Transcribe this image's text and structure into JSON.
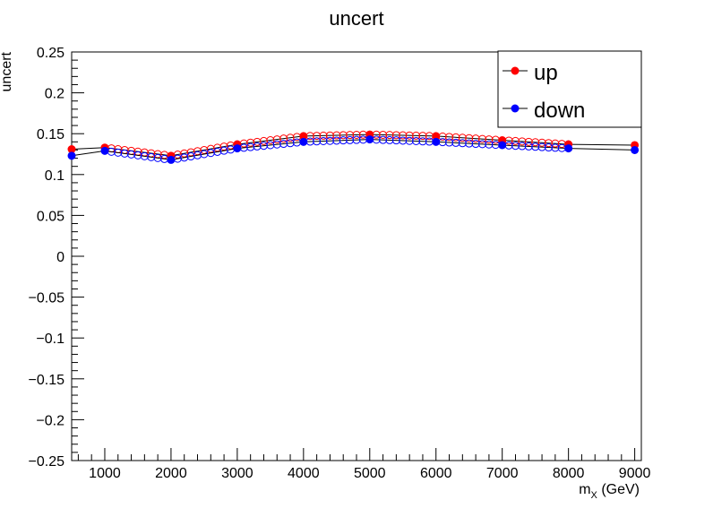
{
  "chart_data": {
    "type": "scatter",
    "title": "uncert",
    "xlabel": "m",
    "xlabel_sub": "X",
    "xlabel_unit": " (GeV)",
    "ylabel": "uncert",
    "xlim": [
      500,
      9100
    ],
    "ylim": [
      -0.25,
      0.25
    ],
    "xticks": [
      1000,
      2000,
      3000,
      4000,
      5000,
      6000,
      7000,
      8000,
      9000
    ],
    "yticks": [
      -0.25,
      -0.2,
      -0.15,
      -0.1,
      -0.05,
      0,
      0.05,
      0.1,
      0.15,
      0.2,
      0.25
    ],
    "ytick_labels": [
      "−0.25",
      "−0.2",
      "−0.15",
      "−0.1",
      "−0.05",
      "0",
      "0.05",
      "0.1",
      "0.15",
      "0.2",
      "0.25"
    ],
    "legend_position": "top-right",
    "series": [
      {
        "name": "up",
        "color": "#ff0000",
        "line_color": "#000000",
        "anchors": {
          "x": [
            500,
            1000,
            2000,
            3000,
            4000,
            5000,
            6000,
            7000,
            8000,
            9000
          ],
          "y": [
            0.131,
            0.133,
            0.123,
            0.137,
            0.147,
            0.149,
            0.147,
            0.142,
            0.137,
            0.136
          ]
        },
        "interpolated": {
          "x": [
            1100,
            1200,
            1300,
            1400,
            1500,
            1600,
            1700,
            1800,
            1900,
            2100,
            2200,
            2300,
            2400,
            2500,
            2600,
            2700,
            2800,
            2900,
            3100,
            3200,
            3300,
            3400,
            3500,
            3600,
            3700,
            3800,
            3900,
            4100,
            4200,
            4300,
            4400,
            4500,
            4600,
            4700,
            4800,
            4900,
            5100,
            5200,
            5300,
            5400,
            5500,
            5600,
            5700,
            5800,
            5900,
            6100,
            6200,
            6300,
            6400,
            6500,
            6600,
            6700,
            6800,
            6900,
            7100,
            7200,
            7300,
            7400,
            7500,
            7600,
            7700,
            7800,
            7900
          ],
          "y": [
            0.132,
            0.131,
            0.13,
            0.129,
            0.128,
            0.127,
            0.126,
            0.125,
            0.124,
            0.1244,
            0.1258,
            0.1272,
            0.1286,
            0.13,
            0.1314,
            0.1328,
            0.1342,
            0.1356,
            0.138,
            0.139,
            0.14,
            0.141,
            0.142,
            0.143,
            0.144,
            0.145,
            0.146,
            0.1472,
            0.1474,
            0.1476,
            0.1478,
            0.148,
            0.1482,
            0.1484,
            0.1486,
            0.1488,
            0.1488,
            0.1486,
            0.1484,
            0.1482,
            0.148,
            0.1478,
            0.1476,
            0.1474,
            0.1472,
            0.1465,
            0.146,
            0.1455,
            0.145,
            0.1445,
            0.144,
            0.1435,
            0.143,
            0.1425,
            0.1415,
            0.141,
            0.1405,
            0.14,
            0.1395,
            0.139,
            0.1385,
            0.138,
            0.1375
          ]
        }
      },
      {
        "name": "down",
        "color": "#0000ff",
        "line_color": "#000000",
        "anchors": {
          "x": [
            500,
            1000,
            2000,
            3000,
            4000,
            5000,
            6000,
            7000,
            8000,
            9000
          ],
          "y": [
            0.123,
            0.129,
            0.118,
            0.132,
            0.14,
            0.143,
            0.14,
            0.136,
            0.132,
            0.13
          ]
        },
        "interpolated": {
          "x": [
            1100,
            1200,
            1300,
            1400,
            1500,
            1600,
            1700,
            1800,
            1900,
            2100,
            2200,
            2300,
            2400,
            2500,
            2600,
            2700,
            2800,
            2900,
            3100,
            3200,
            3300,
            3400,
            3500,
            3600,
            3700,
            3800,
            3900,
            4100,
            4200,
            4300,
            4400,
            4500,
            4600,
            4700,
            4800,
            4900,
            5100,
            5200,
            5300,
            5400,
            5500,
            5600,
            5700,
            5800,
            5900,
            6100,
            6200,
            6300,
            6400,
            6500,
            6600,
            6700,
            6800,
            6900,
            7100,
            7200,
            7300,
            7400,
            7500,
            7600,
            7700,
            7800,
            7900
          ],
          "y": [
            0.1279,
            0.1268,
            0.1257,
            0.1246,
            0.1235,
            0.1224,
            0.1213,
            0.1202,
            0.1191,
            0.1194,
            0.1208,
            0.1222,
            0.1236,
            0.125,
            0.1264,
            0.1278,
            0.1292,
            0.1306,
            0.1328,
            0.1336,
            0.1344,
            0.1352,
            0.136,
            0.1368,
            0.1376,
            0.1384,
            0.1392,
            0.1403,
            0.1406,
            0.1409,
            0.1412,
            0.1415,
            0.1418,
            0.1421,
            0.1424,
            0.1427,
            0.1427,
            0.1424,
            0.1421,
            0.1418,
            0.1415,
            0.1412,
            0.1409,
            0.1406,
            0.1403,
            0.1396,
            0.1392,
            0.1388,
            0.1384,
            0.138,
            0.1376,
            0.1372,
            0.1368,
            0.1364,
            0.1356,
            0.1352,
            0.1348,
            0.1344,
            0.134,
            0.1336,
            0.1332,
            0.1328,
            0.1324
          ]
        }
      }
    ]
  }
}
